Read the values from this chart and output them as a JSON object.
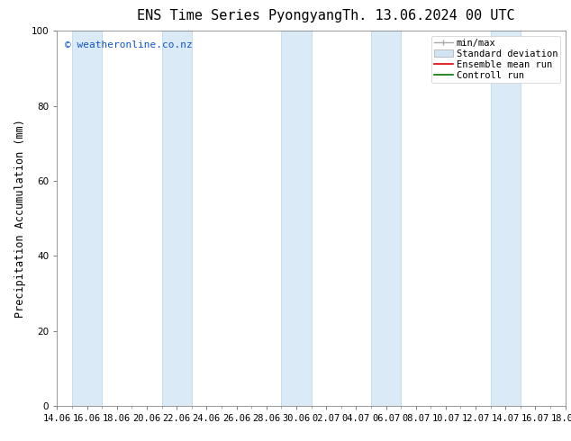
{
  "title_left": "ENS Time Series Pyongyang",
  "title_right": "Th. 13.06.2024 00 UTC",
  "ylabel": "Precipitation Accumulation (mm)",
  "ylim": [
    0,
    100
  ],
  "yticks": [
    0,
    20,
    40,
    60,
    80,
    100
  ],
  "watermark": "© weatheronline.co.nz",
  "watermark_color": "#1155cc",
  "background_color": "#ffffff",
  "plot_bg_color": "#ffffff",
  "x_start": 0,
  "x_end": 34,
  "xtick_labels": [
    "14.06",
    "16.06",
    "18.06",
    "20.06",
    "22.06",
    "24.06",
    "26.06",
    "28.06",
    "30.06",
    "02.07",
    "04.07",
    "06.07",
    "08.07",
    "10.07",
    "12.07",
    "14.07",
    "16.07",
    "18.07"
  ],
  "xtick_positions": [
    0,
    2,
    4,
    6,
    8,
    10,
    12,
    14,
    16,
    18,
    20,
    22,
    24,
    26,
    28,
    30,
    32,
    34
  ],
  "shaded_bands": [
    [
      1,
      3
    ],
    [
      7,
      9
    ],
    [
      15,
      17
    ],
    [
      21,
      23
    ],
    [
      29,
      31
    ]
  ],
  "shaded_color": "#daeaf7",
  "shaded_edge_color": "#b8d4eb",
  "minmax_color": "#aaaaaa",
  "stddev_color": "#d0e4f2",
  "stddev_edge": "#aaaaaa",
  "ensemble_mean_color": "#dd0000",
  "control_run_color": "#007700",
  "title_fontsize": 11,
  "tick_fontsize": 7.5,
  "label_fontsize": 8.5,
  "legend_fontsize": 7.5,
  "watermark_fontsize": 8
}
